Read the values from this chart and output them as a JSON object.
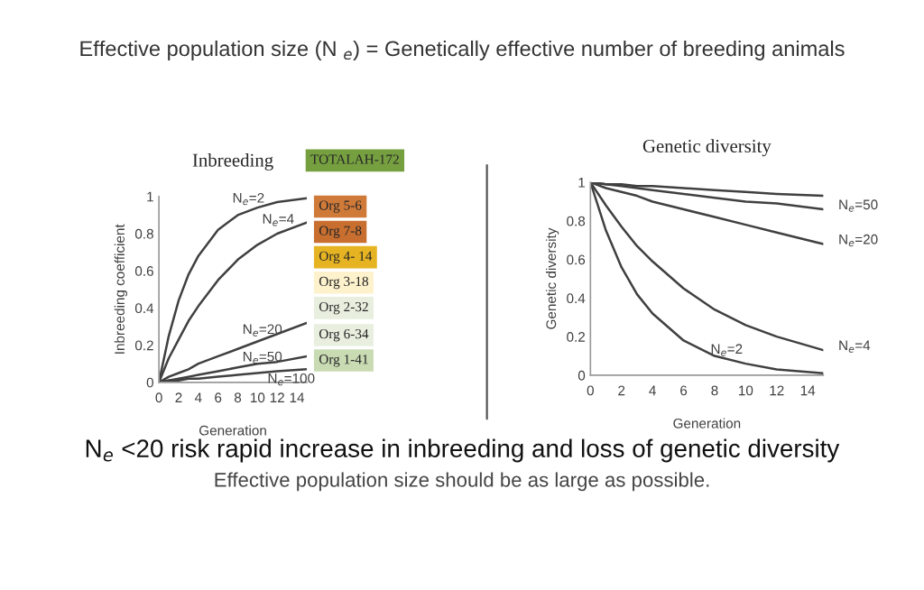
{
  "chart_data": [
    {
      "type": "line",
      "title": "Inbreeding",
      "xlabel": "Generation",
      "ylabel": "Inbreeding coefficient",
      "xlim": [
        0,
        15
      ],
      "xticks": [
        0,
        2,
        4,
        6,
        8,
        10,
        12,
        14
      ],
      "ylim": [
        0,
        1
      ],
      "yticks": [
        0,
        0.2,
        0.4,
        0.6,
        0.8,
        1
      ],
      "grid": false,
      "x": [
        0,
        1,
        2,
        3,
        4,
        6,
        8,
        10,
        12,
        15
      ],
      "series": [
        {
          "name": "N$_{e}$=2",
          "color": "#404040",
          "values": [
            0,
            0.25,
            0.44,
            0.58,
            0.68,
            0.82,
            0.9,
            0.94,
            0.97,
            0.99
          ]
        },
        {
          "name": "N$_{e}$=4",
          "color": "#404040",
          "values": [
            0,
            0.13,
            0.23,
            0.33,
            0.41,
            0.55,
            0.66,
            0.74,
            0.8,
            0.86
          ]
        },
        {
          "name": "N$_{e}$=20",
          "color": "#404040",
          "values": [
            0,
            0.03,
            0.05,
            0.07,
            0.1,
            0.14,
            0.18,
            0.22,
            0.26,
            0.32
          ]
        },
        {
          "name": "N$_{e}$=50",
          "color": "#404040",
          "values": [
            0,
            0.01,
            0.02,
            0.03,
            0.04,
            0.06,
            0.08,
            0.1,
            0.11,
            0.14
          ]
        },
        {
          "name": "N$_{e}$=100",
          "color": "#404040",
          "values": [
            0,
            0.01,
            0.01,
            0.02,
            0.02,
            0.03,
            0.04,
            0.05,
            0.06,
            0.07
          ]
        }
      ],
      "annotations": [
        "Effective population size (N $_{e}$) = Genetically effective number of breeding animals",
        "TOTALAH-172",
        "Org 5-6",
        "Org 7-8",
        "Org 4- 14",
        "Org 3-18",
        "Org 2-32",
        "Org 6-34",
        "Org 1-41",
        "N$_{e}$ <20 risk rapid increase in inbreeding and loss of genetic diversity",
        "Effective population size should be as large as possible."
      ]
    },
    {
      "type": "line",
      "title": "Genetic diversity",
      "xlabel": "Generation",
      "ylabel": "Genetic diversity",
      "xlim": [
        0,
        15
      ],
      "xticks": [
        0,
        2,
        4,
        6,
        8,
        10,
        12,
        14
      ],
      "ylim": [
        0,
        1
      ],
      "yticks": [
        0,
        0.2,
        0.4,
        0.6,
        0.8,
        1
      ],
      "grid": false,
      "x": [
        0,
        1,
        2,
        3,
        4,
        6,
        8,
        10,
        12,
        15
      ],
      "series": [
        {
          "color": "#404040",
          "values": [
            1,
            0.99,
            0.99,
            0.98,
            0.98,
            0.97,
            0.96,
            0.95,
            0.94,
            0.93
          ]
        },
        {
          "name": "N$_{e}$=50",
          "color": "#404040",
          "values": [
            1,
            0.99,
            0.98,
            0.97,
            0.96,
            0.94,
            0.92,
            0.9,
            0.89,
            0.86
          ]
        },
        {
          "name": "N$_{e}$=20",
          "color": "#404040",
          "values": [
            1,
            0.97,
            0.95,
            0.93,
            0.9,
            0.86,
            0.82,
            0.78,
            0.74,
            0.68
          ]
        },
        {
          "name": "N$_{e}$=4",
          "color": "#404040",
          "values": [
            1,
            0.88,
            0.77,
            0.67,
            0.59,
            0.45,
            0.34,
            0.26,
            0.2,
            0.13
          ]
        },
        {
          "name": "N$_{e}$=2",
          "color": "#404040",
          "values": [
            1,
            0.75,
            0.56,
            0.42,
            0.32,
            0.18,
            0.1,
            0.06,
            0.03,
            0.01
          ]
        }
      ]
    }
  ]
}
